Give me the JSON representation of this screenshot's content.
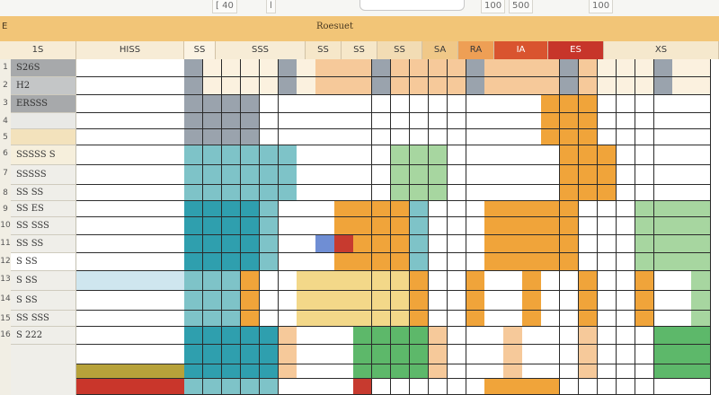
{
  "toolbar": {
    "items": [
      {
        "label": "[ 40"
      },
      {
        "label": "l"
      },
      {
        "label": "100"
      },
      {
        "label": "500"
      },
      {
        "label": "100"
      }
    ]
  },
  "sheet": {
    "title": "Roesuet",
    "corner_label": "E",
    "header_cells": [
      "1S",
      "HISS",
      "SS",
      "SSS",
      "SS",
      "SS",
      "SS",
      "SA",
      "RA",
      "IA",
      "ES",
      "XS"
    ],
    "row_numbers": [
      "1",
      "2",
      "3",
      "4",
      "5",
      "6",
      "7",
      "8",
      "9",
      "10",
      "11",
      "12",
      "13",
      "14",
      "15",
      "16"
    ],
    "row_labels": [
      "S26S",
      "H2",
      "ERSSS",
      "",
      "",
      "SSSSS S",
      "SSSSS",
      "SS SS",
      "SS ES",
      "SS SSS",
      "SS SS",
      "S SS",
      "S SS",
      "S SS",
      "SS SSS",
      "S 222"
    ]
  },
  "colors": {
    "orange": "#f0a43a",
    "peach": "#f6c99a",
    "teal": "#2f9fae",
    "lightTeal": "#7ec3c8",
    "green": "#5db86a",
    "lightGreen": "#a7d6a0",
    "grey": "#9aa3ad",
    "red": "#c73a2f",
    "yellow": "#f3d889",
    "blue": "#6f8ed4",
    "white": "#ffffff",
    "cream": "#fbf1df"
  }
}
